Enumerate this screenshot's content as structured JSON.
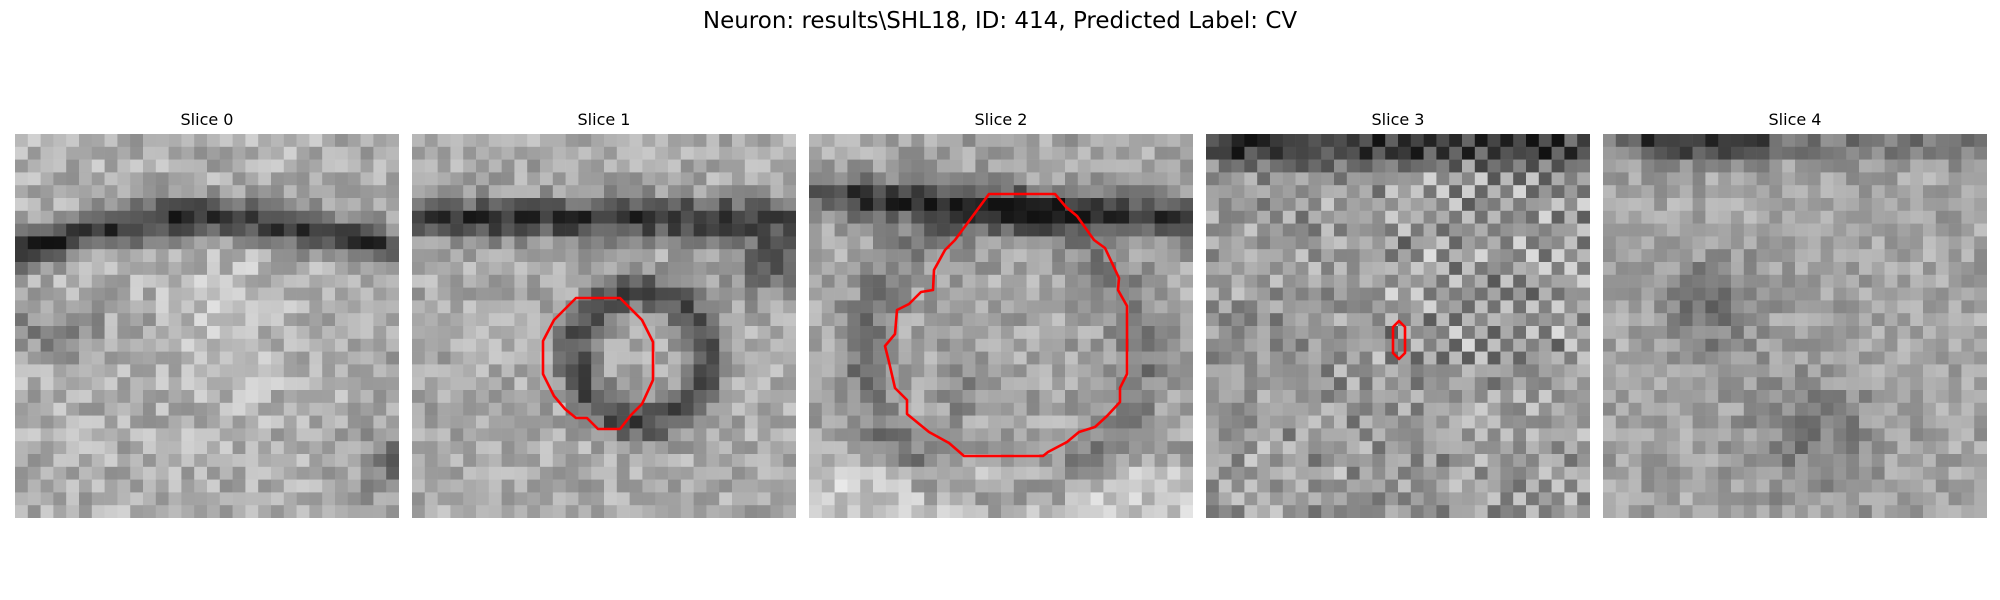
{
  "figure": {
    "title": "Neuron: results\\SHL18, ID: 414, Predicted Label: CV"
  },
  "slices": [
    {
      "title": "Slice 0",
      "has_contour": false
    },
    {
      "title": "Slice 1",
      "has_contour": true
    },
    {
      "title": "Slice 2",
      "has_contour": true
    },
    {
      "title": "Slice 3",
      "has_contour": true
    },
    {
      "title": "Slice 4",
      "has_contour": false
    }
  ],
  "colors": {
    "contour": "#ff0000",
    "background": "#ffffff"
  },
  "colormap": "gray"
}
